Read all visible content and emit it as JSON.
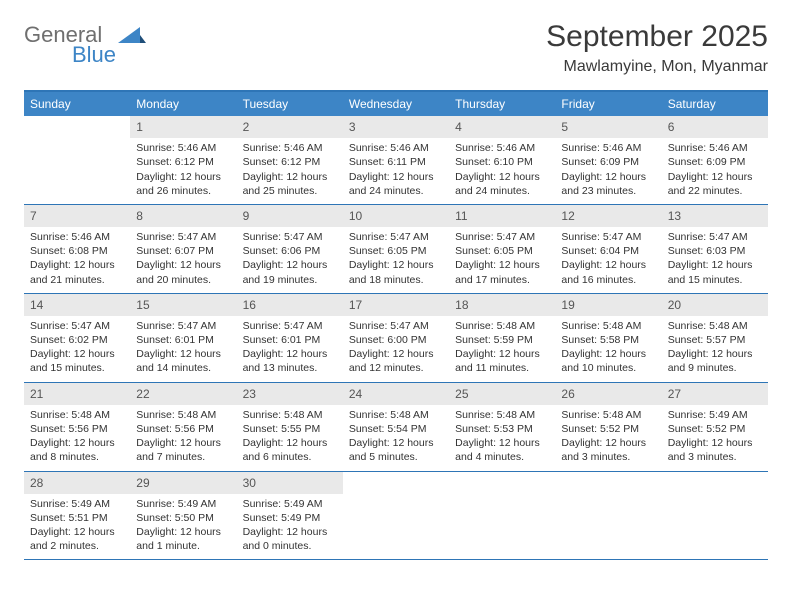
{
  "colors": {
    "header_bar": "#3d85c6",
    "header_border": "#2e75b6",
    "daynum_bg": "#e9e9e9",
    "text": "#333333",
    "logo_grey": "#6f6f6f",
    "logo_blue": "#3d85c6",
    "white": "#ffffff"
  },
  "logo": {
    "word1": "General",
    "word2": "Blue"
  },
  "title": "September 2025",
  "location": "Mawlamyine, Mon, Myanmar",
  "weekdays": [
    "Sunday",
    "Monday",
    "Tuesday",
    "Wednesday",
    "Thursday",
    "Friday",
    "Saturday"
  ],
  "weeks": [
    [
      null,
      {
        "n": "1",
        "sunrise": "Sunrise: 5:46 AM",
        "sunset": "Sunset: 6:12 PM",
        "day1": "Daylight: 12 hours",
        "day2": "and 26 minutes."
      },
      {
        "n": "2",
        "sunrise": "Sunrise: 5:46 AM",
        "sunset": "Sunset: 6:12 PM",
        "day1": "Daylight: 12 hours",
        "day2": "and 25 minutes."
      },
      {
        "n": "3",
        "sunrise": "Sunrise: 5:46 AM",
        "sunset": "Sunset: 6:11 PM",
        "day1": "Daylight: 12 hours",
        "day2": "and 24 minutes."
      },
      {
        "n": "4",
        "sunrise": "Sunrise: 5:46 AM",
        "sunset": "Sunset: 6:10 PM",
        "day1": "Daylight: 12 hours",
        "day2": "and 24 minutes."
      },
      {
        "n": "5",
        "sunrise": "Sunrise: 5:46 AM",
        "sunset": "Sunset: 6:09 PM",
        "day1": "Daylight: 12 hours",
        "day2": "and 23 minutes."
      },
      {
        "n": "6",
        "sunrise": "Sunrise: 5:46 AM",
        "sunset": "Sunset: 6:09 PM",
        "day1": "Daylight: 12 hours",
        "day2": "and 22 minutes."
      }
    ],
    [
      {
        "n": "7",
        "sunrise": "Sunrise: 5:46 AM",
        "sunset": "Sunset: 6:08 PM",
        "day1": "Daylight: 12 hours",
        "day2": "and 21 minutes."
      },
      {
        "n": "8",
        "sunrise": "Sunrise: 5:47 AM",
        "sunset": "Sunset: 6:07 PM",
        "day1": "Daylight: 12 hours",
        "day2": "and 20 minutes."
      },
      {
        "n": "9",
        "sunrise": "Sunrise: 5:47 AM",
        "sunset": "Sunset: 6:06 PM",
        "day1": "Daylight: 12 hours",
        "day2": "and 19 minutes."
      },
      {
        "n": "10",
        "sunrise": "Sunrise: 5:47 AM",
        "sunset": "Sunset: 6:05 PM",
        "day1": "Daylight: 12 hours",
        "day2": "and 18 minutes."
      },
      {
        "n": "11",
        "sunrise": "Sunrise: 5:47 AM",
        "sunset": "Sunset: 6:05 PM",
        "day1": "Daylight: 12 hours",
        "day2": "and 17 minutes."
      },
      {
        "n": "12",
        "sunrise": "Sunrise: 5:47 AM",
        "sunset": "Sunset: 6:04 PM",
        "day1": "Daylight: 12 hours",
        "day2": "and 16 minutes."
      },
      {
        "n": "13",
        "sunrise": "Sunrise: 5:47 AM",
        "sunset": "Sunset: 6:03 PM",
        "day1": "Daylight: 12 hours",
        "day2": "and 15 minutes."
      }
    ],
    [
      {
        "n": "14",
        "sunrise": "Sunrise: 5:47 AM",
        "sunset": "Sunset: 6:02 PM",
        "day1": "Daylight: 12 hours",
        "day2": "and 15 minutes."
      },
      {
        "n": "15",
        "sunrise": "Sunrise: 5:47 AM",
        "sunset": "Sunset: 6:01 PM",
        "day1": "Daylight: 12 hours",
        "day2": "and 14 minutes."
      },
      {
        "n": "16",
        "sunrise": "Sunrise: 5:47 AM",
        "sunset": "Sunset: 6:01 PM",
        "day1": "Daylight: 12 hours",
        "day2": "and 13 minutes."
      },
      {
        "n": "17",
        "sunrise": "Sunrise: 5:47 AM",
        "sunset": "Sunset: 6:00 PM",
        "day1": "Daylight: 12 hours",
        "day2": "and 12 minutes."
      },
      {
        "n": "18",
        "sunrise": "Sunrise: 5:48 AM",
        "sunset": "Sunset: 5:59 PM",
        "day1": "Daylight: 12 hours",
        "day2": "and 11 minutes."
      },
      {
        "n": "19",
        "sunrise": "Sunrise: 5:48 AM",
        "sunset": "Sunset: 5:58 PM",
        "day1": "Daylight: 12 hours",
        "day2": "and 10 minutes."
      },
      {
        "n": "20",
        "sunrise": "Sunrise: 5:48 AM",
        "sunset": "Sunset: 5:57 PM",
        "day1": "Daylight: 12 hours",
        "day2": "and 9 minutes."
      }
    ],
    [
      {
        "n": "21",
        "sunrise": "Sunrise: 5:48 AM",
        "sunset": "Sunset: 5:56 PM",
        "day1": "Daylight: 12 hours",
        "day2": "and 8 minutes."
      },
      {
        "n": "22",
        "sunrise": "Sunrise: 5:48 AM",
        "sunset": "Sunset: 5:56 PM",
        "day1": "Daylight: 12 hours",
        "day2": "and 7 minutes."
      },
      {
        "n": "23",
        "sunrise": "Sunrise: 5:48 AM",
        "sunset": "Sunset: 5:55 PM",
        "day1": "Daylight: 12 hours",
        "day2": "and 6 minutes."
      },
      {
        "n": "24",
        "sunrise": "Sunrise: 5:48 AM",
        "sunset": "Sunset: 5:54 PM",
        "day1": "Daylight: 12 hours",
        "day2": "and 5 minutes."
      },
      {
        "n": "25",
        "sunrise": "Sunrise: 5:48 AM",
        "sunset": "Sunset: 5:53 PM",
        "day1": "Daylight: 12 hours",
        "day2": "and 4 minutes."
      },
      {
        "n": "26",
        "sunrise": "Sunrise: 5:48 AM",
        "sunset": "Sunset: 5:52 PM",
        "day1": "Daylight: 12 hours",
        "day2": "and 3 minutes."
      },
      {
        "n": "27",
        "sunrise": "Sunrise: 5:49 AM",
        "sunset": "Sunset: 5:52 PM",
        "day1": "Daylight: 12 hours",
        "day2": "and 3 minutes."
      }
    ],
    [
      {
        "n": "28",
        "sunrise": "Sunrise: 5:49 AM",
        "sunset": "Sunset: 5:51 PM",
        "day1": "Daylight: 12 hours",
        "day2": "and 2 minutes."
      },
      {
        "n": "29",
        "sunrise": "Sunrise: 5:49 AM",
        "sunset": "Sunset: 5:50 PM",
        "day1": "Daylight: 12 hours",
        "day2": "and 1 minute."
      },
      {
        "n": "30",
        "sunrise": "Sunrise: 5:49 AM",
        "sunset": "Sunset: 5:49 PM",
        "day1": "Daylight: 12 hours",
        "day2": "and 0 minutes."
      },
      null,
      null,
      null,
      null
    ]
  ]
}
